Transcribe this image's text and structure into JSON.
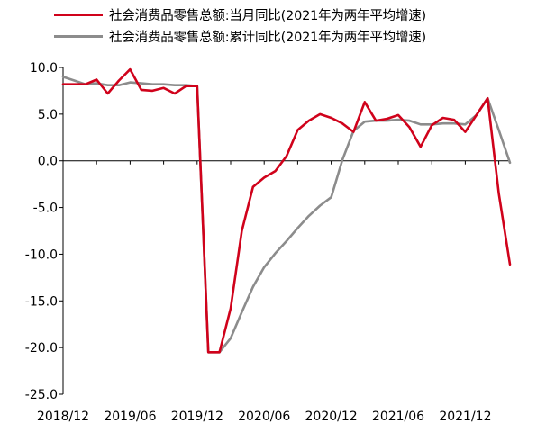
{
  "chart_data": {
    "type": "line",
    "title": "",
    "xlabel": "",
    "ylabel": "",
    "ylim": [
      -25,
      10
    ],
    "yticks": [
      10,
      5,
      0,
      -5,
      -10,
      -15,
      -20,
      -25
    ],
    "ytick_labels": [
      "10.0",
      "5.0",
      "0.0",
      "-5.0",
      "-10.0",
      "-15.0",
      "-20.0",
      "-25.0"
    ],
    "xtick_labels": [
      "2018/12",
      "2019/06",
      "2019/12",
      "2020/06",
      "2020/12",
      "2021/06",
      "2021/12"
    ],
    "x": [
      "2018/12",
      "2019/01",
      "2019/02",
      "2019/03",
      "2019/04",
      "2019/05",
      "2019/06",
      "2019/07",
      "2019/08",
      "2019/09",
      "2019/10",
      "2019/11",
      "2019/12",
      "2020/01",
      "2020/02",
      "2020/03",
      "2020/04",
      "2020/05",
      "2020/06",
      "2020/07",
      "2020/08",
      "2020/09",
      "2020/10",
      "2020/11",
      "2020/12",
      "2021/01",
      "2021/02",
      "2021/03",
      "2021/04",
      "2021/05",
      "2021/06",
      "2021/07",
      "2021/08",
      "2021/09",
      "2021/10",
      "2021/11",
      "2021/12",
      "2022/01",
      "2022/02",
      "2022/03",
      "2022/04"
    ],
    "series": [
      {
        "name": "社会消费品零售总额:当月同比(2021年为两年平均增速)",
        "color": "#d0021b",
        "values": [
          8.2,
          8.2,
          8.2,
          8.7,
          7.2,
          8.6,
          9.8,
          7.6,
          7.5,
          7.8,
          7.2,
          8.0,
          8.0,
          -20.5,
          -20.5,
          -15.8,
          -7.5,
          -2.8,
          -1.8,
          -1.1,
          0.5,
          3.3,
          4.3,
          5.0,
          4.6,
          4.0,
          3.1,
          6.3,
          4.3,
          4.5,
          4.9,
          3.6,
          1.5,
          3.8,
          4.6,
          4.4,
          3.1,
          4.9,
          6.7,
          -3.5,
          -11.1
        ]
      },
      {
        "name": "社会消费品零售总额:累计同比(2021年为两年平均增速)",
        "color": "#8c8c8c",
        "values": [
          9.0,
          8.6,
          8.2,
          8.3,
          8.1,
          8.1,
          8.4,
          8.3,
          8.2,
          8.2,
          8.1,
          8.1,
          8.0,
          -20.5,
          -20.5,
          -19.0,
          -16.2,
          -13.5,
          -11.4,
          -9.9,
          -8.6,
          -7.2,
          -5.9,
          -4.8,
          -3.9,
          0.1,
          3.2,
          4.2,
          4.3,
          4.3,
          4.4,
          4.3,
          3.9,
          3.9,
          4.0,
          4.0,
          3.9,
          4.9,
          6.7,
          3.3,
          -0.2
        ]
      }
    ],
    "legend": "top"
  }
}
